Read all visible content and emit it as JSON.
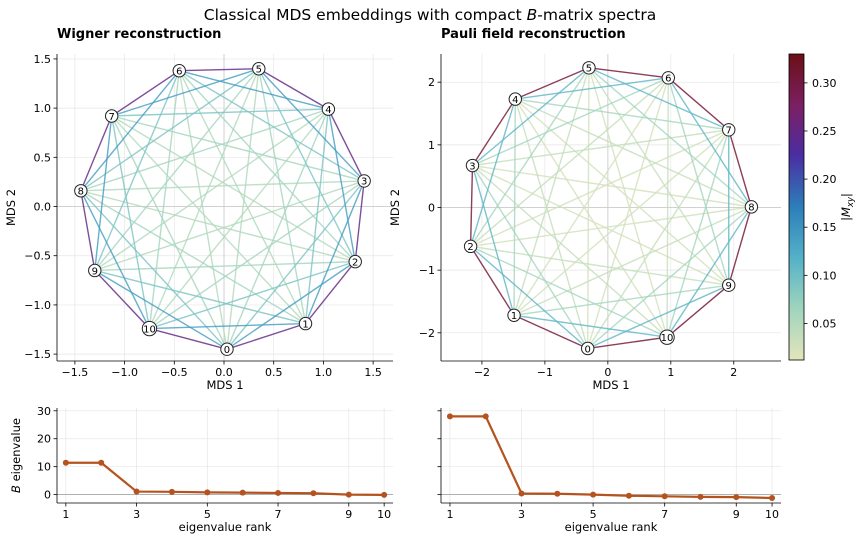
{
  "suptitle": {
    "before": "Classical MDS embeddings with compact ",
    "italic": "B",
    "after": "-matrix spectra"
  },
  "colorbar": {
    "label": "|M_xy|",
    "min": 0.012,
    "max": 0.33,
    "ticks": [
      0.05,
      0.1,
      0.15,
      0.2,
      0.25,
      0.3
    ],
    "tick_labels": [
      "0.05",
      "0.10",
      "0.15",
      "0.20",
      "0.25",
      "0.30"
    ],
    "colormap_stops": [
      "#e3e5bb",
      "#9fd4be",
      "#55b2c8",
      "#2c7fba",
      "#4b2da2",
      "#7b2063",
      "#6b0f16"
    ]
  },
  "chart_data": [
    {
      "type": "scatter",
      "title": "Wigner reconstruction",
      "xlabel": "MDS 1",
      "ylabel": "MDS 2",
      "xlim": [
        -1.68,
        1.7
      ],
      "ylim": [
        -1.57,
        1.55
      ],
      "xticks": [
        -1.5,
        -1.0,
        -0.5,
        0.0,
        0.5,
        1.0,
        1.5
      ],
      "xtick_labels": [
        "−1.5",
        "−1.0",
        "−0.5",
        "0.0",
        "0.5",
        "1.0",
        "1.5"
      ],
      "yticks": [
        -1.5,
        -1.0,
        -0.5,
        0.0,
        0.5,
        1.0,
        1.5
      ],
      "ytick_labels": [
        "−1.5",
        "−1.0",
        "−0.5",
        "0.0",
        "0.5",
        "1.0",
        "1.5"
      ],
      "grid": true,
      "nodes": [
        {
          "label": "0",
          "x": 0.03,
          "y": -1.45
        },
        {
          "label": "1",
          "x": 0.82,
          "y": -1.19
        },
        {
          "label": "2",
          "x": 1.32,
          "y": -0.56
        },
        {
          "label": "3",
          "x": 1.41,
          "y": 0.26
        },
        {
          "label": "4",
          "x": 1.05,
          "y": 0.99
        },
        {
          "label": "5",
          "x": 0.35,
          "y": 1.4
        },
        {
          "label": "6",
          "x": -0.45,
          "y": 1.38
        },
        {
          "label": "7",
          "x": -1.13,
          "y": 0.92
        },
        {
          "label": "8",
          "x": -1.44,
          "y": 0.16
        },
        {
          "label": "9",
          "x": -1.3,
          "y": -0.65
        },
        {
          "label": "10",
          "x": -0.75,
          "y": -1.24
        }
      ],
      "edge_weight_by_step": [
        0.25,
        0.14,
        0.09,
        0.06,
        0.05
      ]
    },
    {
      "type": "scatter",
      "title": "Pauli field reconstruction",
      "xlabel": "MDS 1",
      "ylabel": "MDS 2",
      "xlim": [
        -2.65,
        2.75
      ],
      "ylim": [
        -2.45,
        2.45
      ],
      "xticks": [
        -2,
        -1,
        0,
        1,
        2
      ],
      "xtick_labels": [
        "−2",
        "−1",
        "0",
        "1",
        "2"
      ],
      "yticks": [
        -2,
        -1,
        0,
        1,
        2
      ],
      "ytick_labels": [
        "−2",
        "−1",
        "0",
        "1",
        "2"
      ],
      "grid": true,
      "nodes": [
        {
          "label": "0",
          "x": -0.32,
          "y": -2.25
        },
        {
          "label": "1",
          "x": -1.49,
          "y": -1.72
        },
        {
          "label": "2",
          "x": -2.18,
          "y": -0.62
        },
        {
          "label": "3",
          "x": -2.15,
          "y": 0.67
        },
        {
          "label": "4",
          "x": -1.47,
          "y": 1.73
        },
        {
          "label": "5",
          "x": -0.3,
          "y": 2.23
        },
        {
          "label": "6",
          "x": 0.96,
          "y": 2.07
        },
        {
          "label": "7",
          "x": 1.92,
          "y": 1.24
        },
        {
          "label": "8",
          "x": 2.28,
          "y": 0.01
        },
        {
          "label": "9",
          "x": 1.92,
          "y": -1.24
        },
        {
          "label": "10",
          "x": 0.94,
          "y": -2.07
        }
      ],
      "edge_weight_by_step": [
        0.31,
        0.11,
        0.06,
        0.035,
        0.025
      ]
    },
    {
      "type": "line",
      "title": "",
      "xlabel": "eigenvalue rank",
      "ylabel": "B eigenvalue",
      "xlim": [
        0.75,
        10.25
      ],
      "ylim": [
        -3,
        31
      ],
      "xticks": [
        1,
        3,
        5,
        7,
        9,
        10
      ],
      "xtick_labels": [
        "1",
        "3",
        "5",
        "7",
        "9",
        "10"
      ],
      "yticks": [
        0,
        10,
        20,
        30
      ],
      "ytick_labels": [
        "0",
        "10",
        "20",
        "30"
      ],
      "x": [
        1,
        2,
        3,
        4,
        5,
        6,
        7,
        8,
        9,
        10
      ],
      "values": [
        11.4,
        11.4,
        1.1,
        1.0,
        0.8,
        0.7,
        0.6,
        0.5,
        0.0,
        -0.1
      ],
      "color": "#b5531f"
    },
    {
      "type": "line",
      "title": "",
      "xlabel": "eigenvalue rank",
      "ylabel": "",
      "xlim": [
        0.75,
        10.25
      ],
      "ylim": [
        -3,
        31
      ],
      "xticks": [
        1,
        3,
        5,
        7,
        9,
        10
      ],
      "xtick_labels": [
        "1",
        "3",
        "5",
        "7",
        "9",
        "10"
      ],
      "yticks": [
        0,
        10,
        20,
        30
      ],
      "ytick_labels": [
        "",
        "",
        "",
        ""
      ],
      "x": [
        1,
        2,
        3,
        4,
        5,
        6,
        7,
        8,
        9,
        10
      ],
      "values": [
        28.0,
        28.0,
        0.4,
        0.3,
        0.0,
        -0.4,
        -0.6,
        -0.8,
        -0.9,
        -1.2
      ],
      "color": "#b5531f"
    }
  ]
}
